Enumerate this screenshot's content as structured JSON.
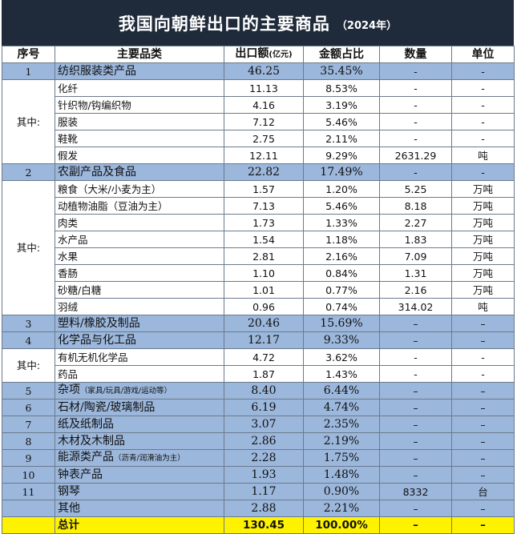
{
  "title": {
    "main": "我国向朝鲜出口的主要商品",
    "year": "（2024年）"
  },
  "headers": {
    "seq": "序号",
    "category": "主要品类",
    "value": "出口额",
    "value_unit": "(亿元)",
    "share": "金额占比",
    "qty": "数量",
    "unit": "单位"
  },
  "sub_label": "其中:",
  "rows": {
    "r1": {
      "seq": "1",
      "name": "纺织服装类产品",
      "value": "46.25",
      "share": "35.45%",
      "qty": "-",
      "unit": "-"
    },
    "r1a": {
      "name": "化纤",
      "value": "11.13",
      "share": "8.53%",
      "qty": "-",
      "unit": "-"
    },
    "r1b": {
      "name": "针织物/钩编织物",
      "value": "4.16",
      "share": "3.19%",
      "qty": "-",
      "unit": "-"
    },
    "r1c": {
      "name": "服装",
      "value": "7.12",
      "share": "5.46%",
      "qty": "-",
      "unit": "-"
    },
    "r1d": {
      "name": "鞋靴",
      "value": "2.75",
      "share": "2.11%",
      "qty": "-",
      "unit": "-"
    },
    "r1e": {
      "name": "假发",
      "value": "12.11",
      "share": "9.29%",
      "qty": "2631.29",
      "unit": "吨"
    },
    "r2": {
      "seq": "2",
      "name": "农副产品及食品",
      "value": "22.82",
      "share": "17.49%",
      "qty": "-",
      "unit": "-"
    },
    "r2a": {
      "name": "粮食（大米/小麦为主）",
      "value": "1.57",
      "share": "1.20%",
      "qty": "5.25",
      "unit": "万吨"
    },
    "r2b": {
      "name": "动植物油脂（豆油为主）",
      "value": "7.13",
      "share": "5.46%",
      "qty": "8.18",
      "unit": "万吨"
    },
    "r2c": {
      "name": "肉类",
      "value": "1.73",
      "share": "1.33%",
      "qty": "2.27",
      "unit": "万吨"
    },
    "r2d": {
      "name": "水产品",
      "value": "1.54",
      "share": "1.18%",
      "qty": "1.83",
      "unit": "万吨"
    },
    "r2e": {
      "name": "水果",
      "value": "2.81",
      "share": "2.16%",
      "qty": "7.09",
      "unit": "万吨"
    },
    "r2f": {
      "name": "香肠",
      "value": "1.10",
      "share": "0.84%",
      "qty": "1.31",
      "unit": "万吨"
    },
    "r2g": {
      "name": "砂糖/白糖",
      "value": "1.01",
      "share": "0.77%",
      "qty": "2.16",
      "unit": "万吨"
    },
    "r2h": {
      "name": "羽绒",
      "value": "0.96",
      "share": "0.74%",
      "qty": "314.02",
      "unit": "吨"
    },
    "r3": {
      "seq": "3",
      "name": "塑料/橡胶及制品",
      "value": "20.46",
      "share": "15.69%",
      "qty": "–",
      "unit": "–"
    },
    "r4": {
      "seq": "4",
      "name": "化学品与化工品",
      "value": "12.17",
      "share": "9.33%",
      "qty": "–",
      "unit": "–"
    },
    "r4a": {
      "name": "有机无机化学品",
      "value": "4.72",
      "share": "3.62%",
      "qty": "-",
      "unit": "-"
    },
    "r4b": {
      "name": "药品",
      "value": "1.87",
      "share": "1.43%",
      "qty": "-",
      "unit": "-"
    },
    "r5": {
      "seq": "5",
      "name": "杂项",
      "note": "（家具/玩具/游戏/运动等）",
      "value": "8.40",
      "share": "6.44%",
      "qty": "–",
      "unit": "–"
    },
    "r6": {
      "seq": "6",
      "name": "石材/陶瓷/玻璃制品",
      "value": "6.19",
      "share": "4.74%",
      "qty": "–",
      "unit": "–"
    },
    "r7": {
      "seq": "7",
      "name": "纸及纸制品",
      "value": "3.07",
      "share": "2.35%",
      "qty": "–",
      "unit": "–"
    },
    "r8": {
      "seq": "8",
      "name": "木材及木制品",
      "value": "2.86",
      "share": "2.19%",
      "qty": "–",
      "unit": "–"
    },
    "r9": {
      "seq": "9",
      "name": "能源类产品",
      "note": "（沥青/润滑油为主）",
      "value": "2.28",
      "share": "1.75%",
      "qty": "–",
      "unit": "–"
    },
    "r10": {
      "seq": "10",
      "name": "钟表产品",
      "value": "1.93",
      "share": "1.48%",
      "qty": "–",
      "unit": "–"
    },
    "r11": {
      "seq": "11",
      "name": "钢琴",
      "value": "1.17",
      "share": "0.90%",
      "qty": "8332",
      "unit": "台"
    },
    "other": {
      "name": "其他",
      "value": "2.88",
      "share": "2.21%",
      "qty": "–",
      "unit": "–"
    },
    "total": {
      "name": "总计",
      "value": "130.45",
      "share": "100.00%",
      "qty": "–",
      "unit": "–"
    }
  },
  "colors": {
    "title_bg": "#1f2a3a",
    "highlight": "#9cb7dc",
    "total": "#fff200"
  }
}
